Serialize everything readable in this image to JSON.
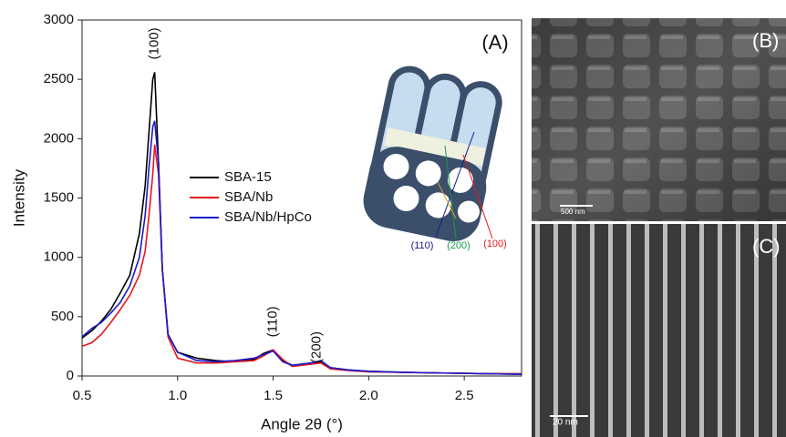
{
  "chart_data": {
    "type": "line",
    "x_label": "Angle 2θ (°)",
    "y_label": "Intensity",
    "panel_label": "(A)",
    "x": [
      0.5,
      0.55,
      0.6,
      0.65,
      0.7,
      0.75,
      0.8,
      0.83,
      0.85,
      0.87,
      0.88,
      0.9,
      0.92,
      0.95,
      1.0,
      1.1,
      1.2,
      1.3,
      1.4,
      1.45,
      1.5,
      1.55,
      1.6,
      1.7,
      1.75,
      1.8,
      1.9,
      2.0,
      2.2,
      2.4,
      2.6,
      2.8
    ],
    "series": [
      {
        "name": "SBA-15",
        "color": "#000000",
        "values": [
          320,
          380,
          460,
          560,
          700,
          850,
          1200,
          1600,
          2050,
          2500,
          2560,
          1800,
          900,
          350,
          200,
          150,
          130,
          120,
          140,
          190,
          220,
          130,
          90,
          110,
          120,
          70,
          50,
          40,
          30,
          25,
          20,
          15
        ]
      },
      {
        "name": "SBA/Nb",
        "color": "#e8161b",
        "values": [
          250,
          280,
          350,
          450,
          560,
          680,
          850,
          1050,
          1350,
          1700,
          1950,
          1700,
          900,
          330,
          150,
          110,
          110,
          120,
          130,
          170,
          220,
          140,
          80,
          100,
          110,
          60,
          45,
          35,
          30,
          25,
          20,
          20
        ]
      },
      {
        "name": "SBA/Nb/HpCo",
        "color": "#1a1acc",
        "values": [
          330,
          400,
          450,
          530,
          620,
          760,
          1000,
          1350,
          1750,
          2100,
          2150,
          1800,
          900,
          350,
          200,
          130,
          120,
          130,
          150,
          180,
          210,
          120,
          90,
          110,
          130,
          70,
          50,
          40,
          30,
          25,
          20,
          15
        ]
      }
    ],
    "xlim": [
      0.5,
      2.8
    ],
    "ylim": [
      0,
      3000
    ],
    "xticks": [
      0.5,
      {
        "value": 1,
        "label": "1.0"
      },
      1.5,
      {
        "value": 2,
        "label": "2.0"
      },
      2.5
    ],
    "yticks": [
      0,
      500,
      1000,
      1500,
      2000,
      2500,
      3000
    ],
    "peak_labels": [
      {
        "text": "(100)",
        "x": 0.88
      },
      {
        "text": "(110)",
        "x": 1.5
      },
      {
        "text": "(200)",
        "x": 1.73
      }
    ],
    "inset_labels": [
      {
        "text": "(110)",
        "color": "#1a1a8c"
      },
      {
        "text": "(200)",
        "color": "#1a9a4a"
      },
      {
        "text": "(100)",
        "color": "#e8161b"
      }
    ]
  },
  "panels": [
    {
      "label": "(B)",
      "scale_bar": "500 nm"
    },
    {
      "label": "(C)",
      "scale_bar": "20 nm"
    }
  ]
}
